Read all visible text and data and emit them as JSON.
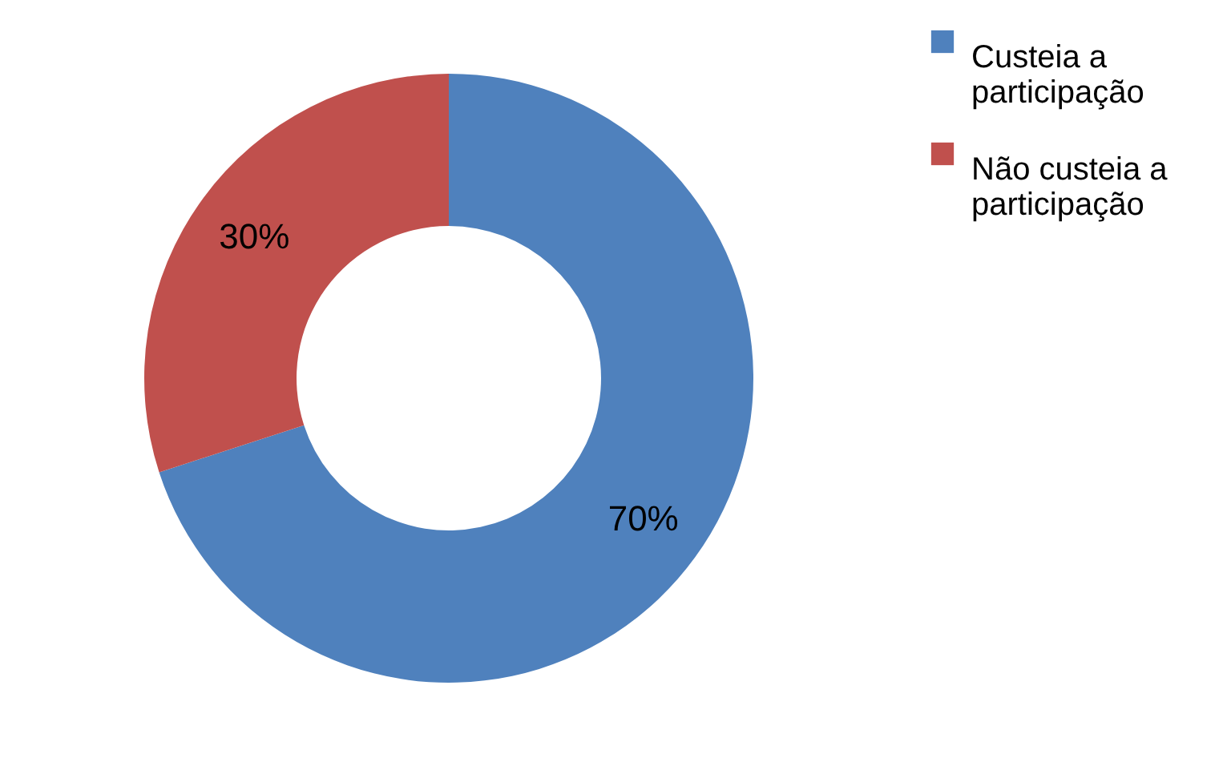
{
  "chart_data": {
    "type": "donut",
    "categories": [
      "Custeia a participação",
      "Não custeia a participação"
    ],
    "values": [
      70,
      30
    ],
    "colors": [
      "#4f81bd",
      "#c0504d"
    ],
    "value_labels": [
      "70%",
      "30%"
    ],
    "legend": "top right"
  }
}
